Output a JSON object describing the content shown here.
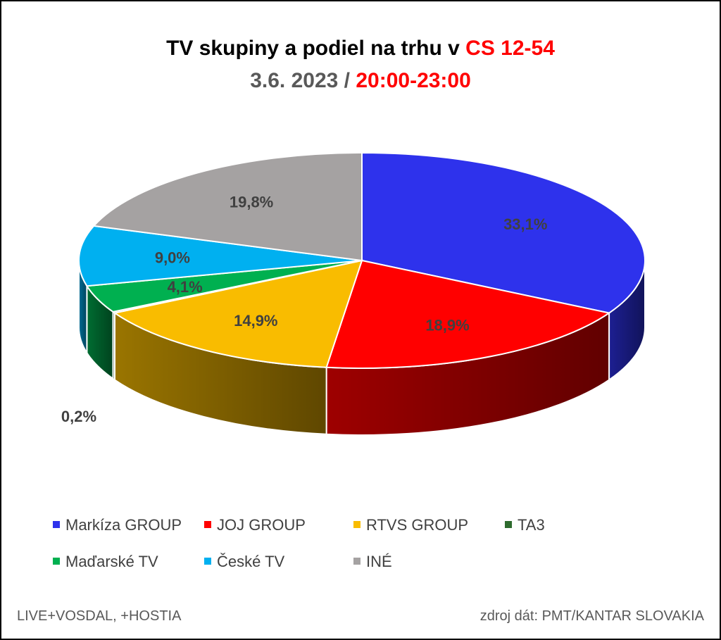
{
  "title": {
    "line1_prefix": "TV skupiny a podiel na trhu v",
    "line1_highlight": "CS 12-54",
    "line2_prefix": "3.6. 2023 /",
    "line2_highlight": "20:00-23:00"
  },
  "footer": {
    "left": "LIVE+VOSDAL, +HOSTIA",
    "right": "zdroj dát: PMT/KANTAR SLOVAKIA"
  },
  "chart_data": {
    "type": "pie",
    "style": "3d",
    "legend_position": "bottom",
    "categories": [
      "Markíza GROUP",
      "JOJ GROUP",
      "RTVS GROUP",
      "TA3",
      "Maďarské  TV",
      "České  TV",
      "INÉ"
    ],
    "values": [
      33.1,
      18.9,
      14.9,
      0.2,
      4.1,
      9.0,
      19.8
    ],
    "labels": [
      "33,1%",
      "18,9%",
      "14,9%",
      "0,2%",
      "4,1%",
      "9,0%",
      "19,8%"
    ],
    "colors": [
      "#2e32ec",
      "#ff0000",
      "#f9bc00",
      "#2e6b2e",
      "#00b050",
      "#00b0f0",
      "#a5a2a2"
    ]
  }
}
